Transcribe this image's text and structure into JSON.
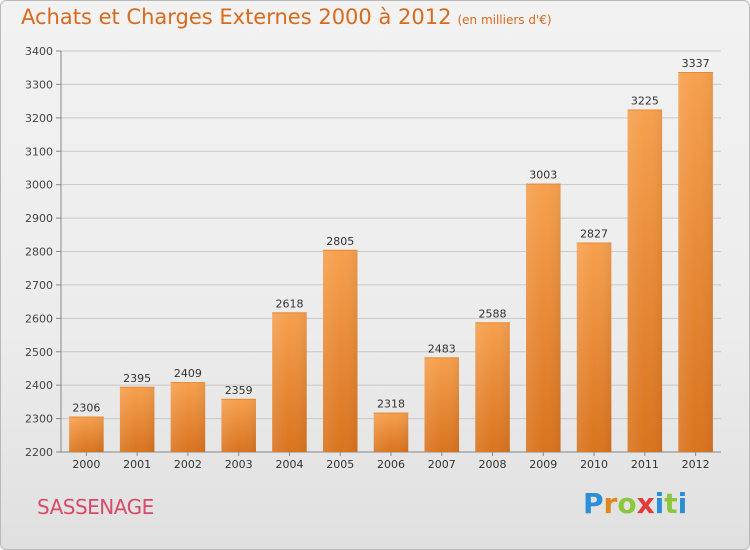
{
  "title": "Achats et Charges Externes 2000 à 2012",
  "unit_note": "(en milliers d'€)",
  "commune": "SASSENAGE",
  "logo_text": "Proxiti",
  "colors": {
    "bar_top": "#f6a04e",
    "bar_bottom": "#d9731e",
    "title": "#d96a1b",
    "commune": "#d84a6a",
    "grid": "#c8c8c8"
  },
  "chart_data": {
    "type": "bar",
    "title": "Achats et Charges Externes 2000 à 2012",
    "subtitle": "(en milliers d'€)",
    "xlabel": "",
    "ylabel": "",
    "categories": [
      "2000",
      "2001",
      "2002",
      "2003",
      "2004",
      "2005",
      "2006",
      "2007",
      "2008",
      "2009",
      "2010",
      "2011",
      "2012"
    ],
    "values": [
      2306,
      2395,
      2409,
      2359,
      2618,
      2805,
      2318,
      2483,
      2588,
      3003,
      2827,
      3225,
      3337
    ],
    "ylim": [
      2200,
      3400
    ],
    "yticks": [
      2200,
      2300,
      2400,
      2500,
      2600,
      2700,
      2800,
      2900,
      3000,
      3100,
      3200,
      3300,
      3400
    ],
    "grid": true,
    "legend": "none"
  }
}
